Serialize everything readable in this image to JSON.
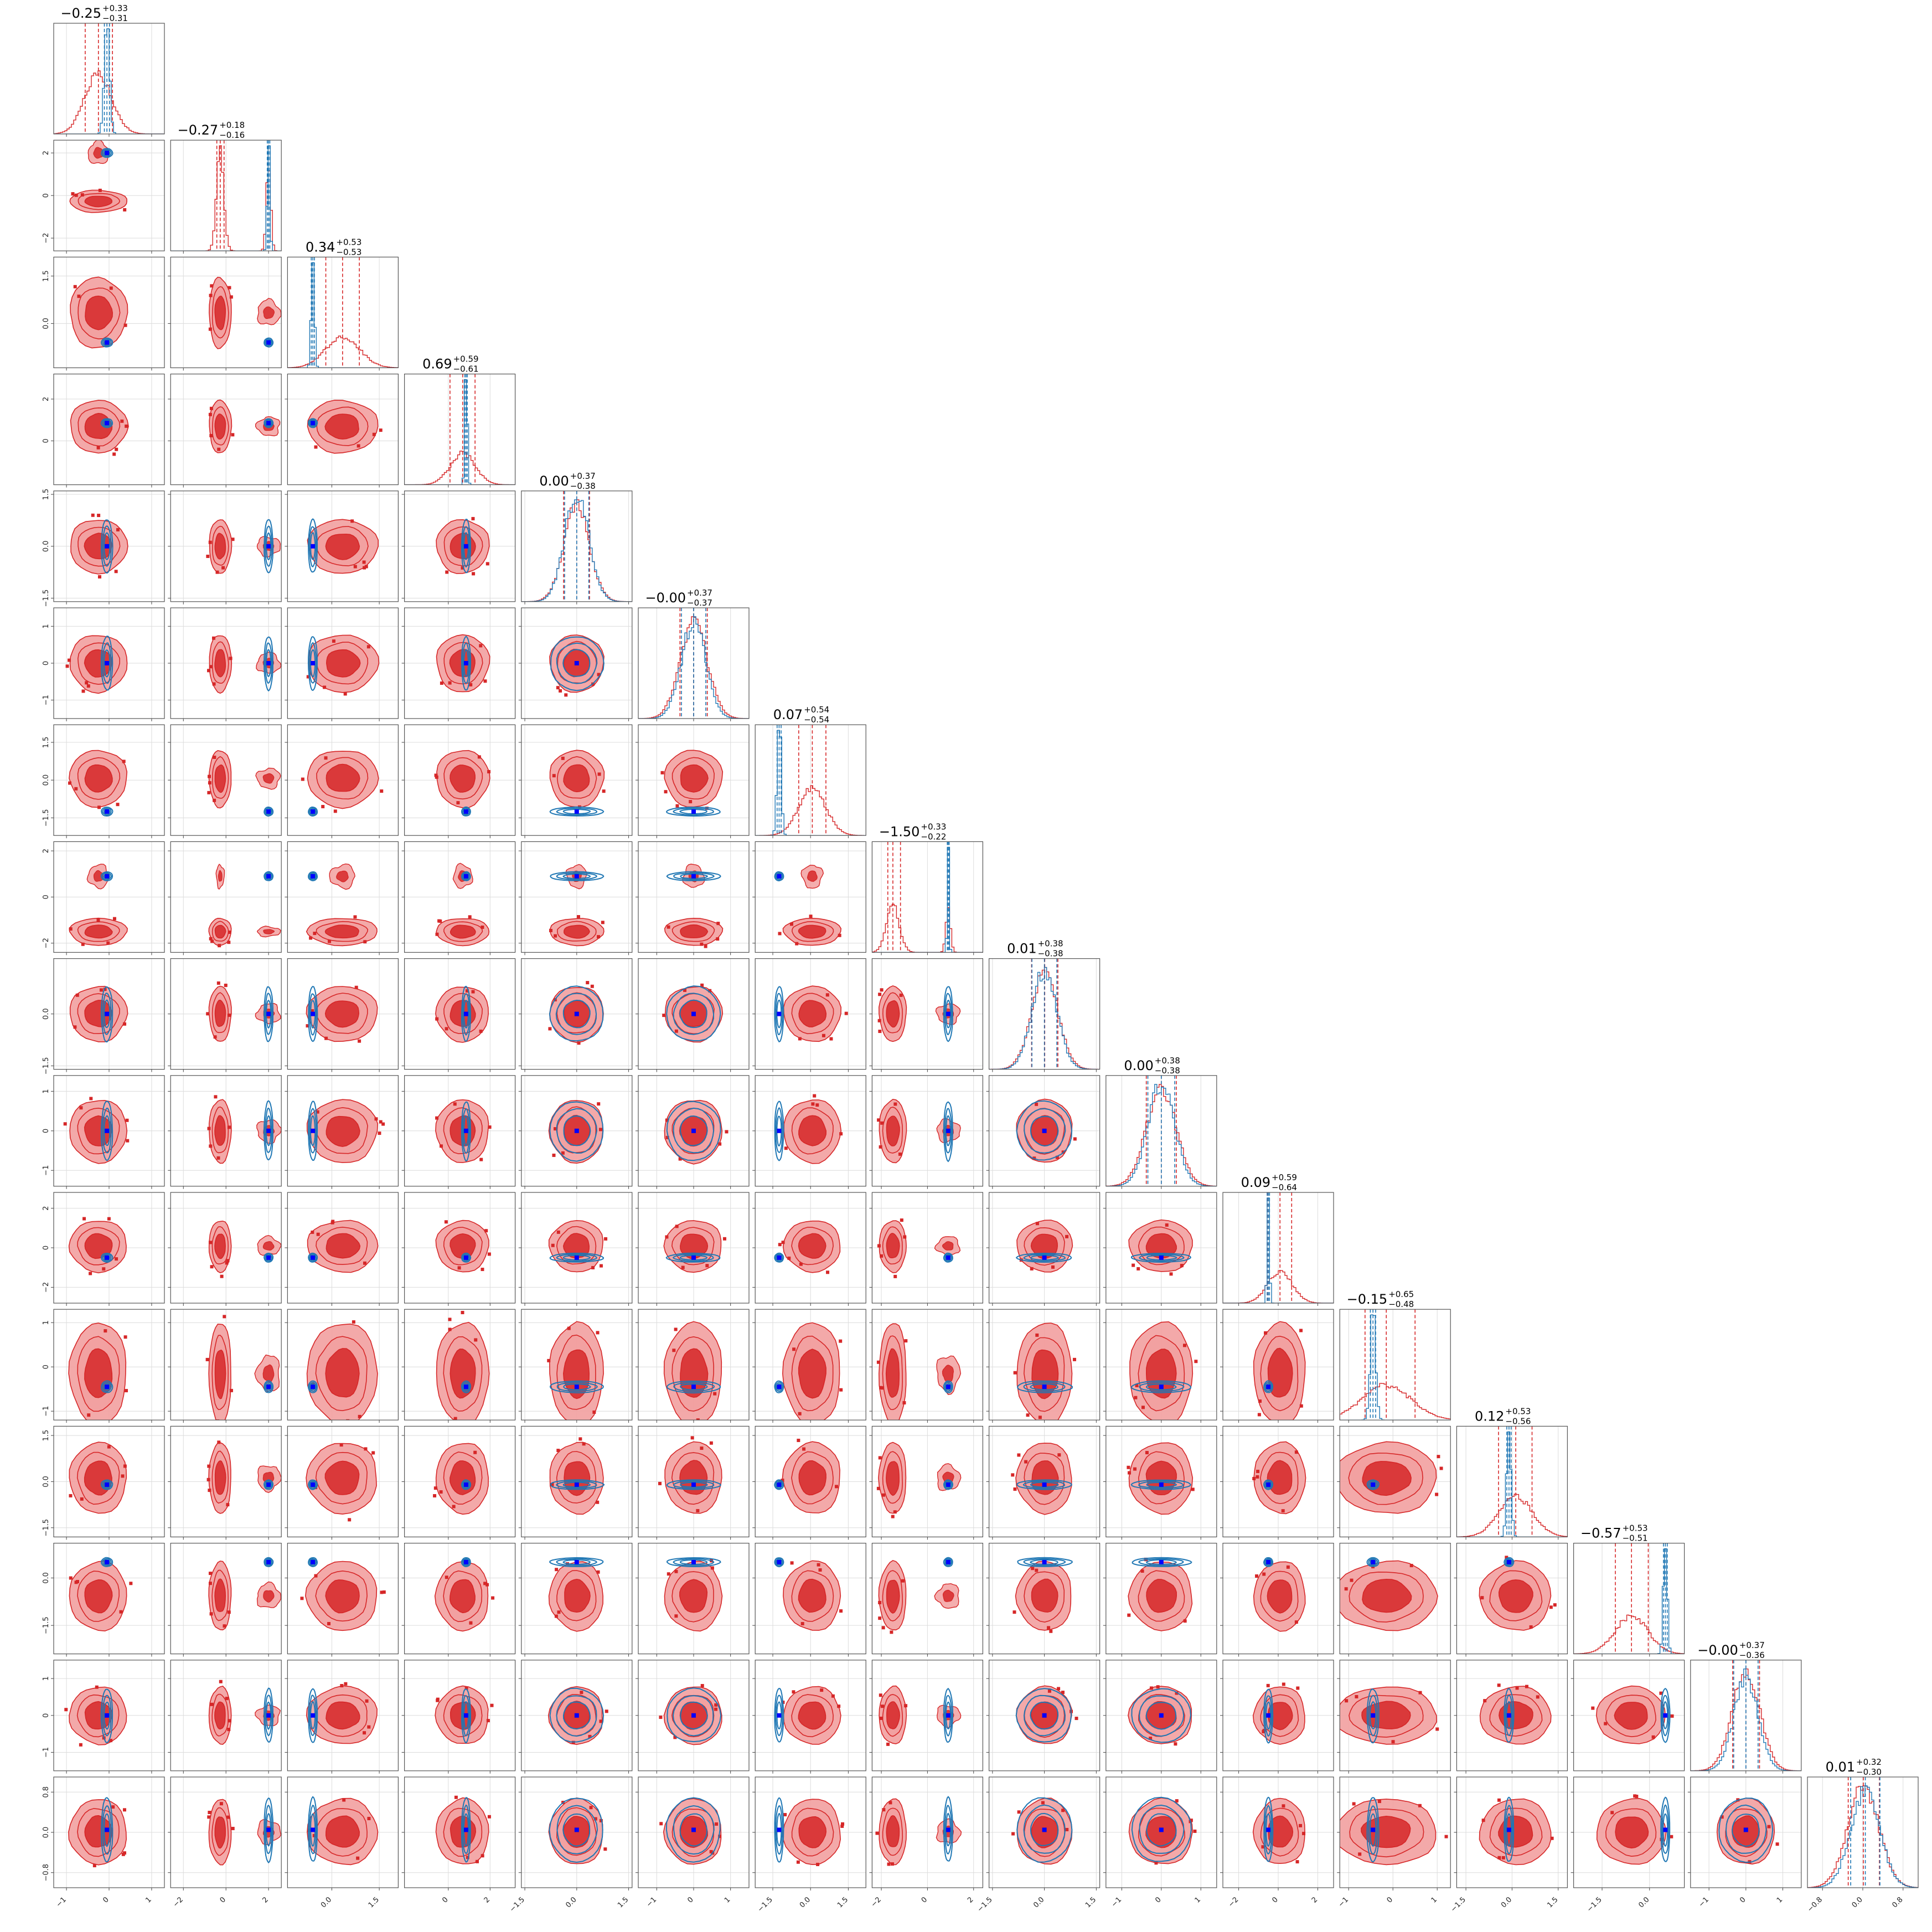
{
  "chart_data": {
    "type": "corner",
    "dimensions": 16,
    "grid": true,
    "colors": {
      "red": "#d62728",
      "red_light": "#f2a0a0",
      "blue": "#1f77b4",
      "marker": "#0000ff"
    },
    "series": [
      {
        "name": "",
        "color": "#d62728",
        "style": "filled contours + histogram"
      },
      {
        "name": "",
        "color": "#1f77b4",
        "style": "line contours + histogram"
      }
    ],
    "titles": [
      {
        "value": "−0.25",
        "plus": "+0.33",
        "minus": "−0.31"
      },
      {
        "value": "−0.27",
        "plus": "+0.18",
        "minus": "−0.16"
      },
      {
        "value": "0.34",
        "plus": "+0.53",
        "minus": "−0.53"
      },
      {
        "value": "0.69",
        "plus": "+0.59",
        "minus": "−0.61"
      },
      {
        "value": "0.00",
        "plus": "+0.37",
        "minus": "−0.38"
      },
      {
        "value": "−0.00",
        "plus": "+0.37",
        "minus": "−0.37"
      },
      {
        "value": "0.07",
        "plus": "+0.54",
        "minus": "−0.54"
      },
      {
        "value": "−1.50",
        "plus": "+0.33",
        "minus": "−0.22"
      },
      {
        "value": "0.01",
        "plus": "+0.38",
        "minus": "−0.38"
      },
      {
        "value": "0.00",
        "plus": "+0.38",
        "minus": "−0.38"
      },
      {
        "value": "0.09",
        "plus": "+0.59",
        "minus": "−0.64"
      },
      {
        "value": "−0.15",
        "plus": "+0.65",
        "minus": "−0.48"
      },
      {
        "value": "0.12",
        "plus": "+0.53",
        "minus": "−0.56"
      },
      {
        "value": "−0.57",
        "plus": "+0.53",
        "minus": "−0.51"
      },
      {
        "value": "−0.00",
        "plus": "+0.37",
        "minus": "−0.36"
      },
      {
        "value": "0.01",
        "plus": "+0.32",
        "minus": "−0.30"
      }
    ],
    "ranges": [
      [
        -1.3,
        1.3
      ],
      [
        -2.6,
        2.6
      ],
      [
        -1.4,
        2.1
      ],
      [
        -2.1,
        3.2
      ],
      [
        -1.6,
        1.6
      ],
      [
        -1.5,
        1.5
      ],
      [
        -2.2,
        2.2
      ],
      [
        -2.4,
        2.4
      ],
      [
        -1.6,
        1.6
      ],
      [
        -1.4,
        1.4
      ],
      [
        -2.8,
        2.8
      ],
      [
        -1.2,
        1.3
      ],
      [
        -1.8,
        1.8
      ],
      [
        -2.4,
        1.1
      ],
      [
        -1.5,
        1.5
      ],
      [
        -1.1,
        1.1
      ]
    ],
    "x_ticks": [
      [
        "−1",
        "0",
        "1"
      ],
      [
        "−2",
        "0",
        "2"
      ],
      [
        "0.0",
        "1.5"
      ],
      [
        "0",
        "2"
      ],
      [
        "−1.5",
        "0.0",
        "1.5"
      ],
      [
        "−1",
        "0",
        "1"
      ],
      [
        "−1.5",
        "0.0",
        "1.5"
      ],
      [
        "−2",
        "0",
        "2"
      ],
      [
        "−1.5",
        "0.0",
        "1.5"
      ],
      [
        "−1",
        "0",
        "1"
      ],
      [
        "−2",
        "0",
        "2"
      ],
      [
        "−1",
        "0",
        "1"
      ],
      [
        "−1.5",
        "0.0",
        "1.5"
      ],
      [
        "−1.5",
        "0.0"
      ],
      [
        "−1",
        "0",
        "1"
      ],
      [
        "−0.8",
        "0.0",
        "0.8"
      ]
    ],
    "y_ticks": [
      [],
      [
        "−2",
        "0",
        "2"
      ],
      [
        "0.0",
        "1.5"
      ],
      [
        "0",
        "2"
      ],
      [
        "−1.5",
        "0.0",
        "1.5"
      ],
      [
        "−1",
        "0",
        "1"
      ],
      [
        "−1.5",
        "0.0",
        "1.5"
      ],
      [
        "−2",
        "0",
        "2"
      ],
      [
        "−1.5",
        "0.0"
      ],
      [
        "−1",
        "0",
        "1"
      ],
      [
        "−2",
        "0",
        "2"
      ],
      [
        "−1",
        "0",
        "1"
      ],
      [
        "−1.5",
        "0.0",
        "1.5"
      ],
      [
        "−1.5",
        "0.0"
      ],
      [
        "−1",
        "0",
        "1"
      ],
      [
        "−0.8",
        "0.0",
        "0.8"
      ]
    ],
    "blue_point": [
      -0.05,
      2.0,
      -0.6,
      0.85,
      0.0,
      0.0,
      -1.25,
      0.9,
      0.0,
      0.0,
      -0.5,
      -0.45,
      -0.1,
      0.5,
      0.0,
      0.05
    ],
    "red_mode": [
      -0.25,
      -0.27,
      0.34,
      0.69,
      0.0,
      0.0,
      0.07,
      -1.5,
      0.01,
      0.0,
      0.09,
      -0.15,
      0.12,
      -0.57,
      0.0,
      0.01
    ],
    "red_sigma": [
      0.32,
      0.17,
      0.53,
      0.6,
      0.37,
      0.37,
      0.54,
      0.28,
      0.38,
      0.38,
      0.62,
      0.55,
      0.55,
      0.52,
      0.37,
      0.31
    ],
    "blue_sigma": [
      0.06,
      0.06,
      0.05,
      0.06,
      0.35,
      0.33,
      0.08,
      0.04,
      0.36,
      0.34,
      0.06,
      0.06,
      0.07,
      0.06,
      0.33,
      0.29
    ],
    "red_secondary_mode": [
      null,
      2.0,
      null,
      null,
      null,
      null,
      null,
      0.9,
      null,
      null,
      null,
      null,
      null,
      null,
      null,
      null
    ]
  }
}
